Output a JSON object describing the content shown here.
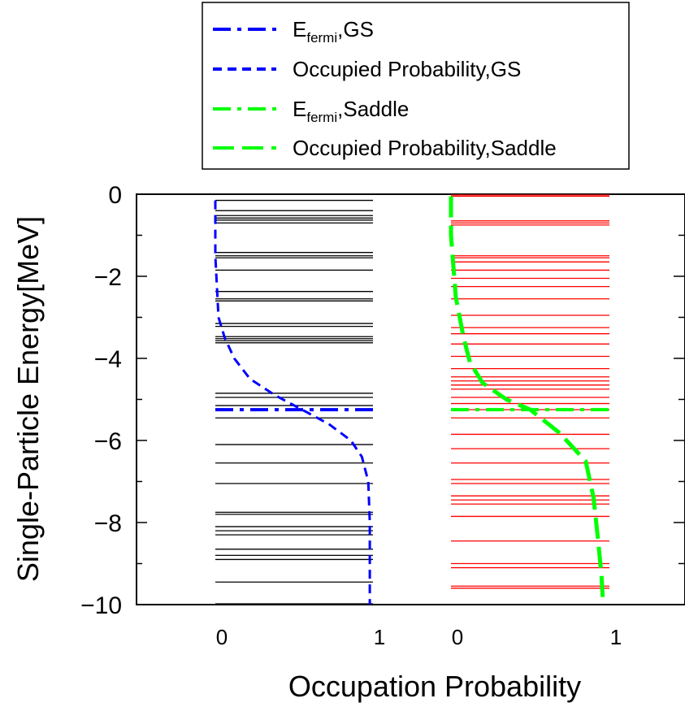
{
  "chart_data": {
    "type": "line",
    "xlabel": "Occupation Probability",
    "ylabel": "Single-Particle Energy[MeV]",
    "ylim": [
      -10,
      0
    ],
    "yticks": [
      0,
      -2,
      -4,
      -6,
      -8,
      -10
    ],
    "ytick_labels": [
      "0",
      "−2",
      "−4",
      "−6",
      "−8",
      "−10"
    ],
    "panels": [
      {
        "name": "GS",
        "xlim": [
          0,
          1
        ],
        "xtick_labels": [
          "0",
          "1"
        ],
        "level_color": "#000000",
        "levels": [
          -0.15,
          -0.4,
          -0.52,
          -0.58,
          -0.63,
          -0.7,
          -1.42,
          -1.5,
          -1.55,
          -1.85,
          -2.37,
          -2.55,
          -2.6,
          -3.15,
          -3.22,
          -3.47,
          -3.52,
          -3.57,
          -3.62,
          -4.85,
          -4.95,
          -5.15,
          -5.45,
          -6.1,
          -6.55,
          -7.05,
          -7.75,
          -7.8,
          -8.1,
          -8.2,
          -8.3,
          -8.65,
          -8.8,
          -8.9,
          -9.45,
          -9.98
        ],
        "fermi_energy": -5.25,
        "occupation": {
          "x": [
            0,
            0,
            0.02,
            0.06,
            0.12,
            0.22,
            0.38,
            0.55,
            0.72,
            0.86,
            0.93,
            0.97,
            0.98,
            0.98
          ],
          "y": [
            -0.15,
            -1.5,
            -3.0,
            -3.5,
            -4.0,
            -4.5,
            -4.9,
            -5.25,
            -5.6,
            -6.0,
            -6.4,
            -7.0,
            -8.0,
            -10
          ]
        },
        "fermi_color": "#0000ff",
        "occupation_color": "#0000ff"
      },
      {
        "name": "Saddle",
        "xlim": [
          0,
          1
        ],
        "xtick_labels": [
          "0",
          "1"
        ],
        "level_color": "#ff0000",
        "levels": [
          -0.02,
          -0.05,
          -0.65,
          -0.7,
          -0.75,
          -1.5,
          -1.55,
          -1.65,
          -1.85,
          -2.05,
          -2.25,
          -2.55,
          -2.95,
          -3.25,
          -3.4,
          -3.65,
          -3.95,
          -4.25,
          -4.45,
          -4.55,
          -4.65,
          -4.75,
          -4.95,
          -5.1,
          -5.25,
          -5.45,
          -5.85,
          -6.2,
          -6.55,
          -6.95,
          -7.05,
          -7.35,
          -7.45,
          -7.55,
          -7.85,
          -8.45,
          -9.0,
          -9.1,
          -9.55,
          -9.6
        ],
        "fermi_energy": -5.25,
        "occupation": {
          "x": [
            0,
            0,
            0.03,
            0.08,
            0.12,
            0.2,
            0.35,
            0.5,
            0.68,
            0.85,
            0.9,
            0.93,
            0.95,
            0.96
          ],
          "y": [
            -0.05,
            -1.0,
            -2.5,
            -3.5,
            -4.1,
            -4.6,
            -5.0,
            -5.25,
            -5.8,
            -6.5,
            -7.4,
            -8.5,
            -9.3,
            -10
          ]
        },
        "fermi_color": "#00ff00",
        "occupation_color": "#00ff00"
      }
    ],
    "legend": {
      "placement": "top",
      "entries": [
        {
          "label": "E",
          "subscript": "fermi",
          "suffix": ",GS",
          "color": "#0000ff",
          "style": "dashdot"
        },
        {
          "label": "Occupied Probability,GS",
          "subscript": "",
          "suffix": "",
          "color": "#0000ff",
          "style": "dashed"
        },
        {
          "label": "E",
          "subscript": "fermi",
          "suffix": ",Saddle",
          "color": "#00ff00",
          "style": "dashdot"
        },
        {
          "label": "Occupied Probability,Saddle",
          "subscript": "",
          "suffix": "",
          "color": "#00ff00",
          "style": "longdash"
        }
      ]
    }
  }
}
